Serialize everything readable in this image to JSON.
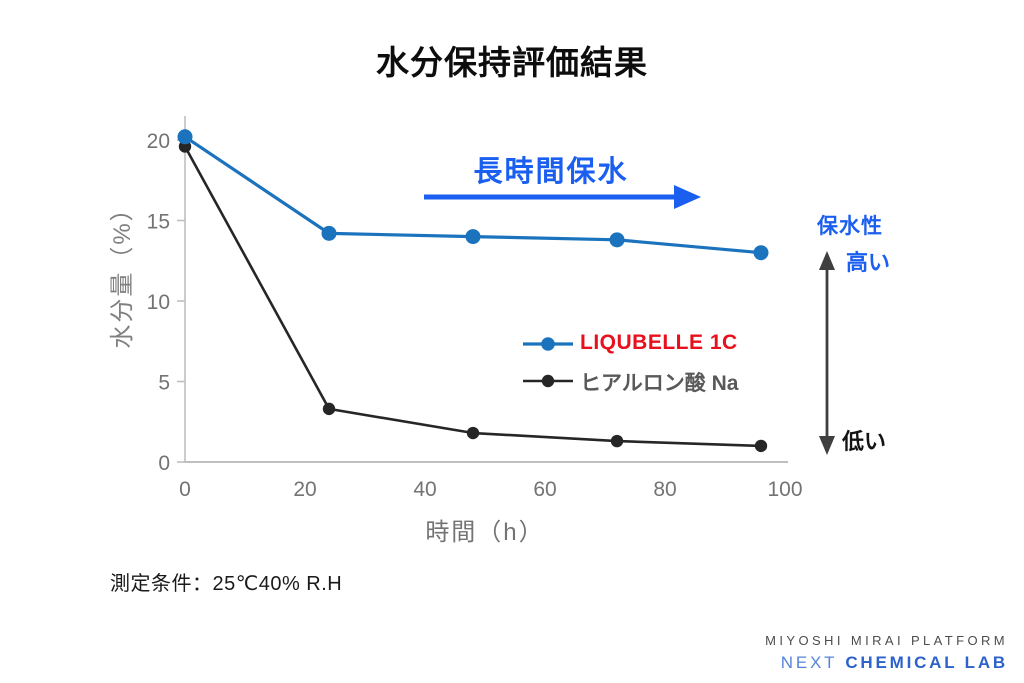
{
  "chart_data": {
    "type": "line",
    "title": "水分保持評価結果",
    "xlabel": "時間（h）",
    "ylabel": "水分量（%）",
    "xlim": [
      0,
      103
    ],
    "ylim": [
      0,
      21.5
    ],
    "x_ticks": [
      0,
      20,
      40,
      60,
      80,
      100
    ],
    "y_ticks": [
      0,
      5,
      10,
      15,
      20
    ],
    "grid": false,
    "legend_position": "inside-center-right",
    "x": [
      0,
      24,
      48,
      72,
      96
    ],
    "series": [
      {
        "name": "LIQUBELLE 1C",
        "values": [
          20.2,
          14.2,
          14.0,
          13.8,
          13.0
        ],
        "line_color": "#1b73be",
        "label_color": "#e8101c"
      },
      {
        "name": "ヒアルロン酸 Na",
        "values": [
          19.6,
          3.3,
          1.8,
          1.3,
          1.0
        ],
        "line_color": "#262626",
        "label_color": "#595959"
      }
    ]
  },
  "annotations": {
    "long_retention": "長時間保水",
    "retention_title": "保水性",
    "high": "高い",
    "low": "低い"
  },
  "note": "測定条件：25℃40% R.H",
  "footer": {
    "line1": "MIYOSHI MIRAI PLATFORM",
    "line2_light": "NEXT",
    "line2_bold": "CHEMICAL LAB"
  },
  "colors": {
    "accent_blue": "#1b5ff0",
    "series_blue": "#1b73be",
    "series_black": "#262626",
    "legend_red": "#e8101c",
    "legend_gray": "#595959",
    "axis_line": "#bfbfbf",
    "axis_text": "#737373",
    "arrow_gray": "#3f3f3f"
  }
}
